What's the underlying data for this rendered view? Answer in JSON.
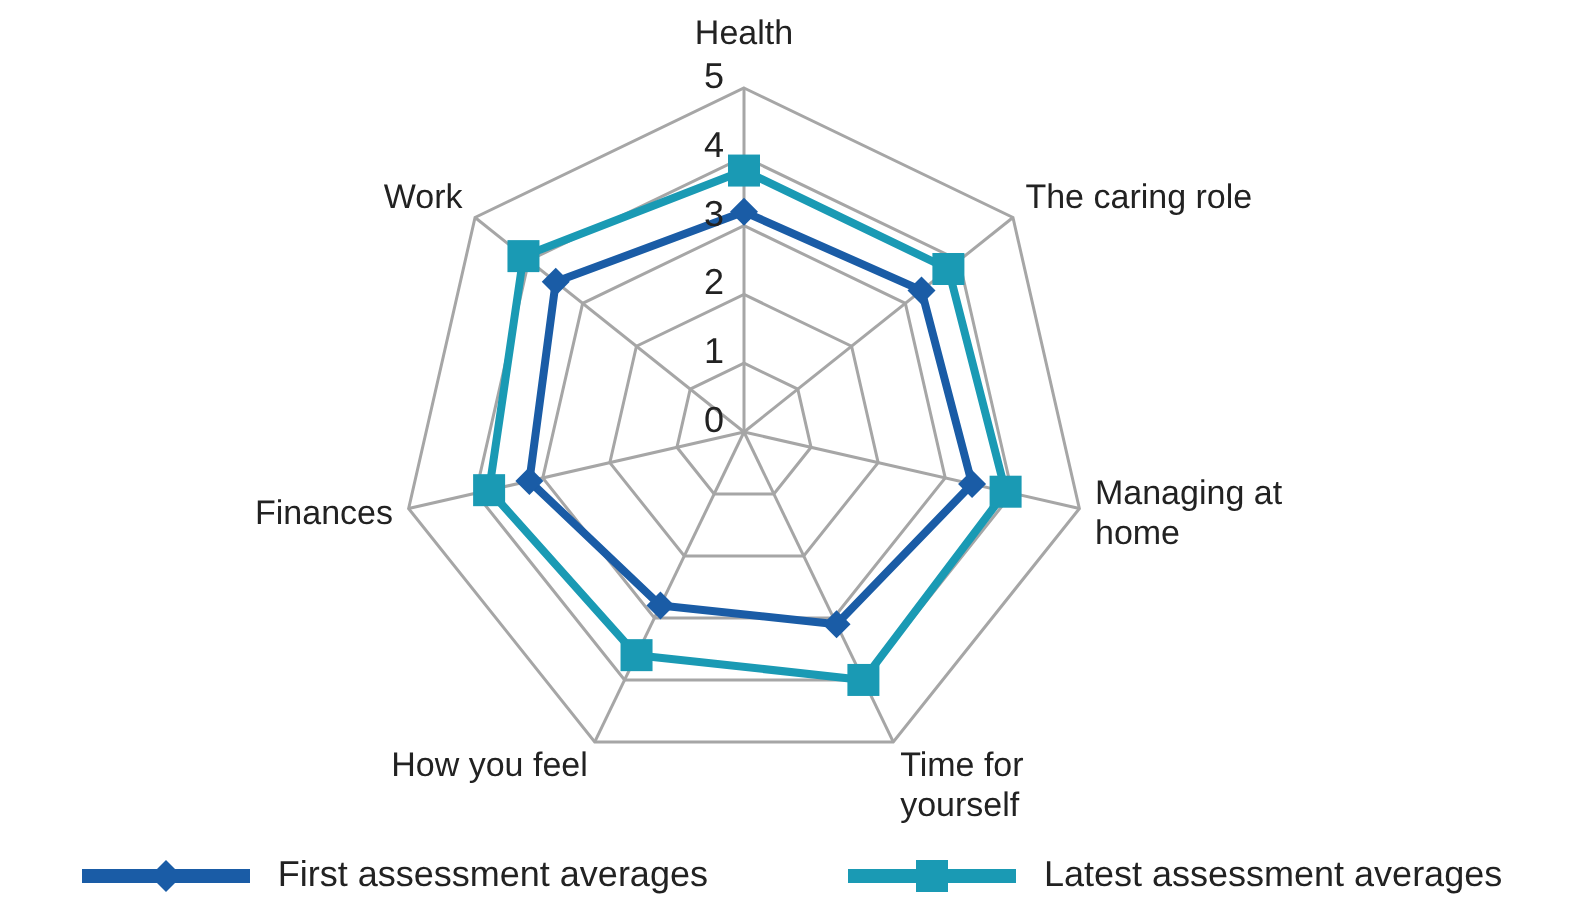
{
  "chart_data": {
    "type": "radar",
    "categories": [
      "Health",
      "The caring role",
      "Managing at\nhome",
      "Time for\nyourself",
      "How you feel",
      "Finances",
      "Work"
    ],
    "series": [
      {
        "name": "First assessment averages",
        "color": "#1a5ca6",
        "marker": "diamond",
        "values": [
          3.2,
          3.3,
          3.4,
          3.1,
          2.8,
          3.2,
          3.5
        ]
      },
      {
        "name": "Latest assessment averages",
        "color": "#1a9ab4",
        "marker": "square",
        "values": [
          3.8,
          3.8,
          3.9,
          4.0,
          3.6,
          3.8,
          4.1
        ]
      }
    ],
    "ylim": [
      0,
      5
    ],
    "yticks": [
      0,
      1,
      2,
      3,
      4,
      5
    ],
    "grid": true,
    "legend": "bottom"
  }
}
